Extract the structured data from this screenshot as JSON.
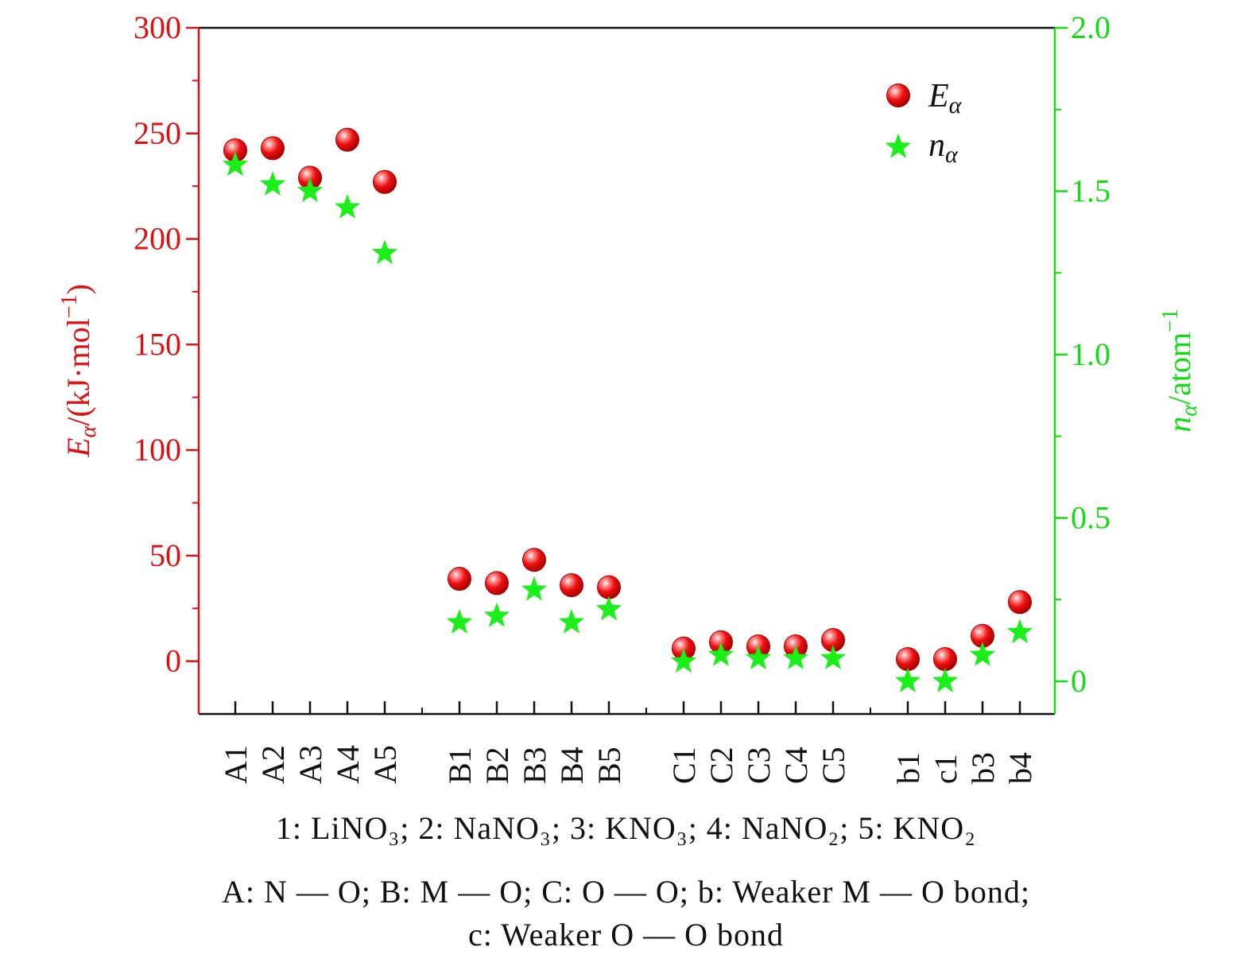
{
  "chart_data": {
    "type": "scatter",
    "categories": [
      "A1",
      "A2",
      "A3",
      "A4",
      "A5",
      "B1",
      "B2",
      "B3",
      "B4",
      "B5",
      "C1",
      "C2",
      "C3",
      "C4",
      "C5",
      "b1",
      "c1",
      "b3",
      "b4"
    ],
    "groups": [
      [
        "A1",
        "A2",
        "A3",
        "A4",
        "A5"
      ],
      [
        "B1",
        "B2",
        "B3",
        "B4",
        "B5"
      ],
      [
        "C1",
        "C2",
        "C3",
        "C4",
        "C5"
      ],
      [
        "b1",
        "c1",
        "b3",
        "b4"
      ]
    ],
    "series": [
      {
        "name": "E",
        "name_sub": "α",
        "axis": "left",
        "marker": "sphere",
        "color": "#e8141c",
        "values": [
          242,
          243,
          229,
          247,
          227,
          39,
          37,
          48,
          36,
          35,
          6,
          9,
          7,
          7,
          10,
          1,
          1,
          12,
          28
        ]
      },
      {
        "name": "n",
        "name_sub": "α",
        "axis": "right",
        "marker": "star",
        "color": "#18f018",
        "values": [
          1.58,
          1.52,
          1.5,
          1.45,
          1.31,
          0.18,
          0.2,
          0.28,
          0.18,
          0.22,
          0.06,
          0.08,
          0.07,
          0.07,
          0.07,
          0.0,
          0.0,
          0.08,
          0.15
        ]
      }
    ],
    "y_left": {
      "label_main": "E",
      "label_sub": "α",
      "label_rest": "/(kJ·mol",
      "label_sup": "−1",
      "label_end": ")",
      "lim": [
        -25,
        300
      ],
      "ticks": [
        0,
        50,
        100,
        150,
        200,
        250,
        300
      ],
      "tick_labels": [
        "0",
        "50",
        "100",
        "150",
        "200",
        "250",
        "300"
      ],
      "color": "#dd1111"
    },
    "y_right": {
      "label_main": "n",
      "label_sub": "α",
      "label_rest": "/atom",
      "label_sup": "−1",
      "lim": [
        -0.1,
        2.0
      ],
      "ticks": [
        0,
        0.5,
        1.0,
        1.5,
        2.0
      ],
      "tick_labels": [
        "0",
        "0.5",
        "1.0",
        "1.5",
        "2.0"
      ],
      "color": "#11dd11"
    },
    "legend_position": "top-right",
    "grid": false
  },
  "captions": {
    "line1": "1: LiNO₃; 2: NaNO₃; 3: KNO₃; 4: NaNO₂; 5: KNO₂",
    "line2": "A: N — O; B: M — O; C: O — O; b: Weaker M — O bond;",
    "line3": "c: Weaker O — O bond"
  }
}
